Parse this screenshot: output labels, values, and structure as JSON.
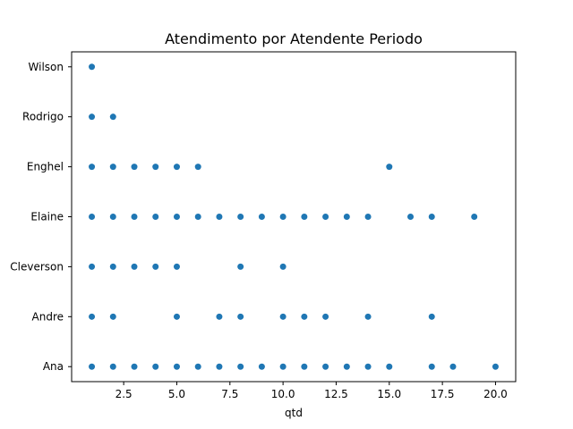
{
  "chart_data": {
    "type": "scatter",
    "title": "Atendimento por Atendente Periodo",
    "xlabel": "qtd",
    "ylabel": "",
    "xlim": [
      0.05,
      20.95
    ],
    "x_ticks": [
      2.5,
      5.0,
      7.5,
      10.0,
      12.5,
      15.0,
      17.5,
      20.0
    ],
    "x_tick_labels": [
      "2.5",
      "5.0",
      "7.5",
      "10.0",
      "12.5",
      "15.0",
      "17.5",
      "20.0"
    ],
    "categories": [
      "Ana",
      "Andre",
      "Cleverson",
      "Elaine",
      "Enghel",
      "Rodrigo",
      "Wilson"
    ],
    "grid": false,
    "marker_color": "#1f77b4",
    "points": [
      {
        "category": "Wilson",
        "x": [
          1
        ]
      },
      {
        "category": "Rodrigo",
        "x": [
          1,
          2
        ]
      },
      {
        "category": "Enghel",
        "x": [
          1,
          2,
          3,
          4,
          5,
          6,
          15
        ]
      },
      {
        "category": "Elaine",
        "x": [
          1,
          2,
          3,
          4,
          5,
          6,
          7,
          8,
          9,
          10,
          11,
          12,
          13,
          14,
          16,
          17,
          19
        ]
      },
      {
        "category": "Cleverson",
        "x": [
          1,
          2,
          3,
          4,
          5,
          8,
          10
        ]
      },
      {
        "category": "Andre",
        "x": [
          1,
          2,
          5,
          7,
          8,
          10,
          11,
          12,
          14,
          17
        ]
      },
      {
        "category": "Ana",
        "x": [
          1,
          2,
          3,
          4,
          5,
          6,
          7,
          8,
          9,
          10,
          11,
          12,
          13,
          14,
          15,
          17,
          18,
          20
        ]
      }
    ]
  }
}
